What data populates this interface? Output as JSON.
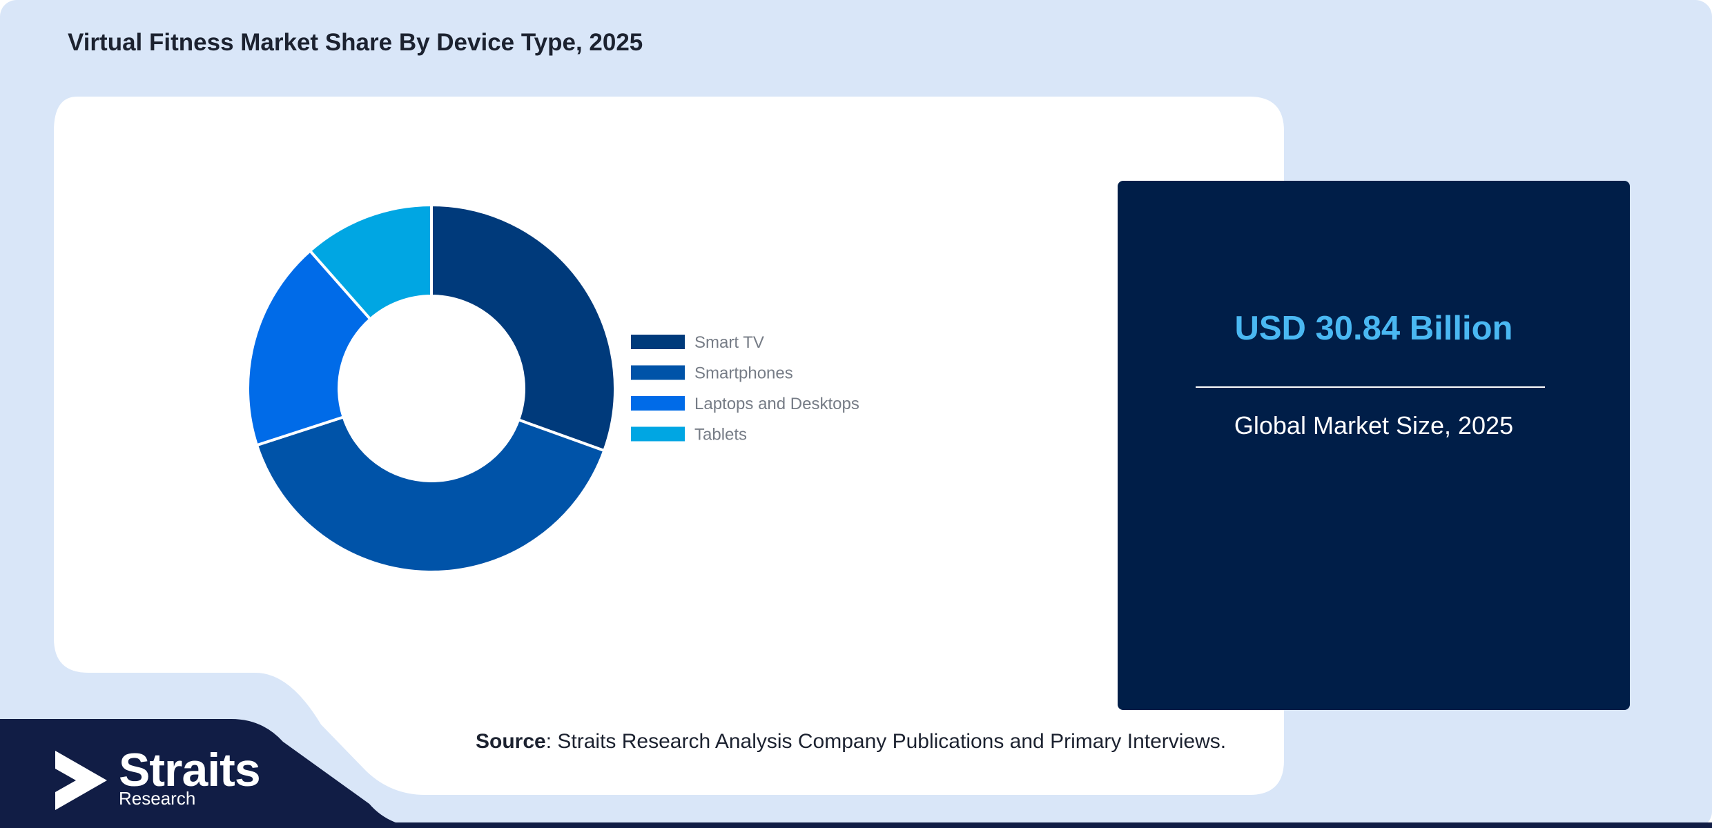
{
  "title": "Virtual Fitness Market Share By Device Type, 2025",
  "kpi": {
    "value": "USD 30.84 Billion",
    "label": "Global Market Size, 2025"
  },
  "source": {
    "prefix": "Source",
    "text": ": Straits Research Analysis Company Publications and Primary Interviews."
  },
  "logo": {
    "name": "Straits",
    "subtitle": "Research"
  },
  "colors": {
    "page_background": "#d9e6f8",
    "card": "#ffffff",
    "panel": "#001e48",
    "kpi_accent": "#4ab8f2",
    "footer_band": "#111d45"
  },
  "chart_data": {
    "type": "pie",
    "variant": "donut",
    "title": "Virtual Fitness Market Share By Device Type, 2025",
    "categories": [
      "Smart TV",
      "Smartphones",
      "Laptops and Desktops",
      "Tablets"
    ],
    "values": [
      30.5,
      39.5,
      18.5,
      11.5
    ],
    "unit": "%",
    "colors": [
      "#003a7b",
      "#0053a8",
      "#006be8",
      "#00a6e3"
    ],
    "legend_position": "right",
    "start_angle": "12 o'clock",
    "direction": "clockwise"
  }
}
